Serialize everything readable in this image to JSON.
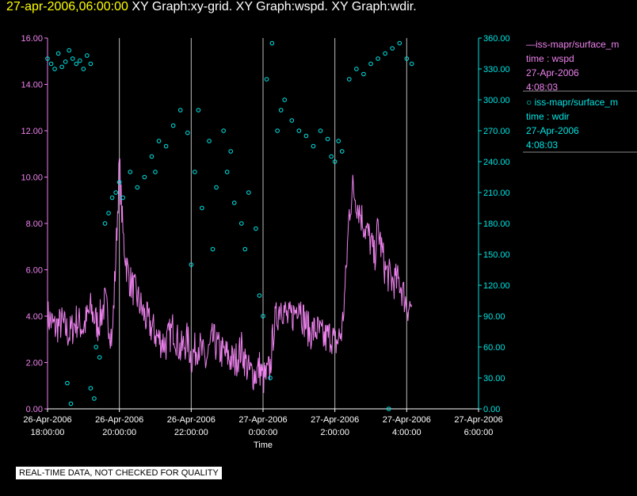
{
  "header": {
    "date": "27-apr-2006,06:00:00",
    "graphs": "XY Graph:xy-grid.  XY Graph:wspd.  XY Graph:wdir."
  },
  "legend": [
    {
      "prefix": "—",
      "name": "iss-mapr/surface_m",
      "axis": "time : wspd",
      "date": "27-Apr-2006",
      "time": "4:08:03",
      "color": "#ee82ee"
    },
    {
      "prefix": "○",
      "name": "iss-mapr/surface_m",
      "axis": "time : wdir",
      "date": "27-Apr-2006",
      "time": "4:08:03",
      "color": "#00e5e5"
    }
  ],
  "footer": {
    "quality": "REAL-TIME DATA, NOT CHECKED FOR QUALITY"
  },
  "chart_data": {
    "type": "line",
    "xlabel": "Time",
    "x_ticks": [
      {
        "date": "26-Apr-2006",
        "time": "18:00:00",
        "h": 0
      },
      {
        "date": "26-Apr-2006",
        "time": "20:00:00",
        "h": 2
      },
      {
        "date": "26-Apr-2006",
        "time": "22:00:00",
        "h": 4
      },
      {
        "date": "27-Apr-2006",
        "time": "0:00:00",
        "h": 6
      },
      {
        "date": "27-Apr-2006",
        "time": "2:00:00",
        "h": 8
      },
      {
        "date": "27-Apr-2006",
        "time": "4:00:00",
        "h": 10
      },
      {
        "date": "27-Apr-2006",
        "time": "6:00:00",
        "h": 12
      }
    ],
    "x_range_hours_from_first_tick": [
      0,
      12
    ],
    "gridlines_hours": [
      2,
      4,
      6,
      8,
      10,
      12
    ],
    "y_left": {
      "range": [
        0,
        16
      ],
      "ticks": [
        "0.00",
        "2.00",
        "4.00",
        "6.00",
        "8.00",
        "10.00",
        "12.00",
        "14.00",
        "16.00"
      ],
      "color": "#ee82ee"
    },
    "y_right": {
      "range": [
        0,
        360
      ],
      "ticks": [
        "0.00",
        "30.00",
        "60.00",
        "90.00",
        "120.00",
        "150.00",
        "180.00",
        "210.00",
        "240.00",
        "270.00",
        "300.00",
        "330.00",
        "360.00"
      ],
      "color": "#00e5e5"
    },
    "series": [
      {
        "name": "time : wspd",
        "axis": "left",
        "style": "line",
        "color": "#ee82ee",
        "points": [
          [
            0,
            4.0
          ],
          [
            0.2,
            3.5
          ],
          [
            0.4,
            3.7
          ],
          [
            0.6,
            3.2
          ],
          [
            0.8,
            3.8
          ],
          [
            1.0,
            3.5
          ],
          [
            1.2,
            4.3
          ],
          [
            1.4,
            3.6
          ],
          [
            1.6,
            4.6
          ],
          [
            1.8,
            3.0
          ],
          [
            1.9,
            6.5
          ],
          [
            2.0,
            10.6
          ],
          [
            2.1,
            7.5
          ],
          [
            2.2,
            6.2
          ],
          [
            2.3,
            5.5
          ],
          [
            2.5,
            4.8
          ],
          [
            2.7,
            4.0
          ],
          [
            2.9,
            3.5
          ],
          [
            3.1,
            3.0
          ],
          [
            3.3,
            2.8
          ],
          [
            3.5,
            3.5
          ],
          [
            3.7,
            2.5
          ],
          [
            3.9,
            3.0
          ],
          [
            4.0,
            2.2
          ],
          [
            4.2,
            2.8
          ],
          [
            4.4,
            2.0
          ],
          [
            4.6,
            3.0
          ],
          [
            4.8,
            2.5
          ],
          [
            5.0,
            2.3
          ],
          [
            5.2,
            2.0
          ],
          [
            5.4,
            2.6
          ],
          [
            5.6,
            1.6
          ],
          [
            5.8,
            1.5
          ],
          [
            5.9,
            1.8
          ],
          [
            6.0,
            1.3
          ],
          [
            6.1,
            1.4
          ],
          [
            6.2,
            1.8
          ],
          [
            6.3,
            3.5
          ],
          [
            6.5,
            4.6
          ],
          [
            6.7,
            3.8
          ],
          [
            6.9,
            4.2
          ],
          [
            7.0,
            4.8
          ],
          [
            7.1,
            4.0
          ],
          [
            7.3,
            3.3
          ],
          [
            7.5,
            3.4
          ],
          [
            7.7,
            3.0
          ],
          [
            7.9,
            3.2
          ],
          [
            8.0,
            2.8
          ],
          [
            8.1,
            3.0
          ],
          [
            8.2,
            3.4
          ],
          [
            8.3,
            5.5
          ],
          [
            8.4,
            8.5
          ],
          [
            8.5,
            9.5
          ],
          [
            8.6,
            9.0
          ],
          [
            8.8,
            8.0
          ],
          [
            9.0,
            7.2
          ],
          [
            9.1,
            6.5
          ],
          [
            9.2,
            7.8
          ],
          [
            9.4,
            6.0
          ],
          [
            9.6,
            5.5
          ],
          [
            9.8,
            5.5
          ],
          [
            10.0,
            4.5
          ],
          [
            10.14,
            4.4
          ]
        ],
        "noise_amplitude": 0.8
      },
      {
        "name": "time : wdir",
        "axis": "right",
        "style": "markers",
        "color": "#00e5e5",
        "points": [
          [
            0.0,
            340
          ],
          [
            0.1,
            335
          ],
          [
            0.2,
            330
          ],
          [
            0.3,
            345
          ],
          [
            0.4,
            332
          ],
          [
            0.5,
            337
          ],
          [
            0.6,
            348
          ],
          [
            0.7,
            340
          ],
          [
            0.8,
            335
          ],
          [
            0.9,
            338
          ],
          [
            1.0,
            330
          ],
          [
            1.1,
            343
          ],
          [
            1.2,
            335
          ],
          [
            0.55,
            25
          ],
          [
            0.65,
            5
          ],
          [
            1.2,
            20
          ],
          [
            1.3,
            10
          ],
          [
            1.35,
            60
          ],
          [
            1.45,
            50
          ],
          [
            1.6,
            180
          ],
          [
            1.7,
            190
          ],
          [
            1.8,
            205
          ],
          [
            1.9,
            210
          ],
          [
            2.0,
            220
          ],
          [
            2.1,
            205
          ],
          [
            2.3,
            230
          ],
          [
            2.5,
            215
          ],
          [
            2.7,
            225
          ],
          [
            2.9,
            245
          ],
          [
            3.0,
            230
          ],
          [
            3.1,
            260
          ],
          [
            3.3,
            255
          ],
          [
            3.5,
            275
          ],
          [
            3.7,
            290
          ],
          [
            3.9,
            268
          ],
          [
            4.0,
            140
          ],
          [
            4.1,
            230
          ],
          [
            4.2,
            290
          ],
          [
            4.3,
            195
          ],
          [
            4.5,
            260
          ],
          [
            4.6,
            155
          ],
          [
            4.7,
            215
          ],
          [
            4.9,
            270
          ],
          [
            5.0,
            230
          ],
          [
            5.1,
            250
          ],
          [
            5.2,
            200
          ],
          [
            5.4,
            180
          ],
          [
            5.5,
            155
          ],
          [
            5.6,
            210
          ],
          [
            5.8,
            175
          ],
          [
            5.9,
            110
          ],
          [
            6.0,
            90
          ],
          [
            6.1,
            320
          ],
          [
            6.2,
            30
          ],
          [
            6.25,
            355
          ],
          [
            6.4,
            270
          ],
          [
            6.5,
            290
          ],
          [
            6.6,
            300
          ],
          [
            6.8,
            280
          ],
          [
            7.0,
            270
          ],
          [
            7.2,
            265
          ],
          [
            7.4,
            255
          ],
          [
            7.6,
            270
          ],
          [
            7.8,
            262
          ],
          [
            7.9,
            245
          ],
          [
            8.0,
            240
          ],
          [
            8.1,
            260
          ],
          [
            8.2,
            250
          ],
          [
            8.4,
            320
          ],
          [
            8.6,
            330
          ],
          [
            8.8,
            325
          ],
          [
            9.0,
            335
          ],
          [
            9.2,
            340
          ],
          [
            9.4,
            345
          ],
          [
            9.6,
            350
          ],
          [
            9.8,
            355
          ],
          [
            10.0,
            340
          ],
          [
            10.14,
            335
          ],
          [
            9.5,
            0
          ]
        ]
      }
    ]
  }
}
